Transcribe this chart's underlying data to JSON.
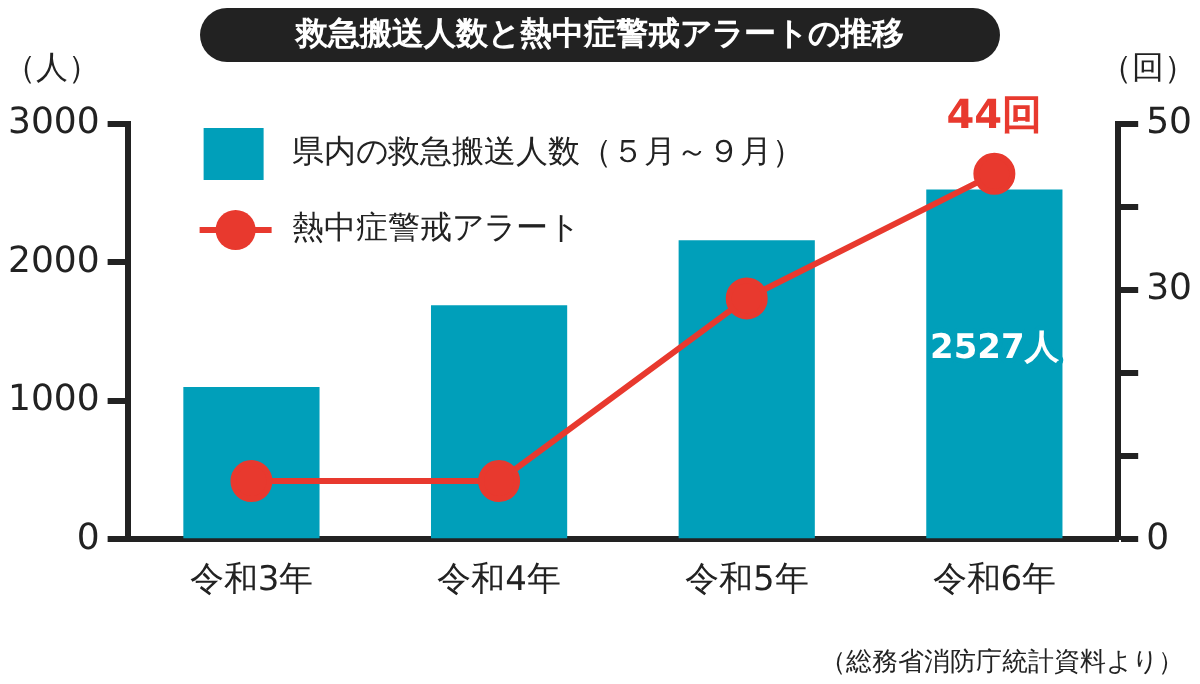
{
  "chart_data": {
    "type": "bar",
    "title": "救急搬送人数と熱中症警戒アラートの推移",
    "ylabel": "（人）",
    "y2label": "（回）",
    "categories": [
      "令和3年",
      "令和4年",
      "令和5年",
      "令和6年"
    ],
    "series": [
      {
        "name": "県内の救急搬送人数（５月～９月）",
        "type": "bar",
        "color": "#009fba",
        "values": [
          1100,
          1690,
          2160,
          2527
        ],
        "value_labels": [
          null,
          null,
          null,
          "2527人"
        ]
      },
      {
        "name": "熱中症警戒アラート",
        "type": "line",
        "axis": "y2",
        "color": "#e8392e",
        "marker": "circle",
        "values": [
          7,
          7,
          29,
          44
        ],
        "value_labels": [
          null,
          null,
          null,
          "44回"
        ]
      }
    ],
    "ylim": [
      0,
      3000
    ],
    "yticks": [
      0,
      1000,
      2000,
      3000
    ],
    "y2lim": [
      0,
      50
    ],
    "y2ticks": [
      0,
      {
        "value": 10,
        "label": null
      },
      {
        "value": 20,
        "label": null
      },
      30,
      {
        "value": 40,
        "label": null
      },
      50
    ],
    "grid": false,
    "legend": "top left",
    "annotations": [
      "（総務省消防庁統計資料より）"
    ]
  }
}
